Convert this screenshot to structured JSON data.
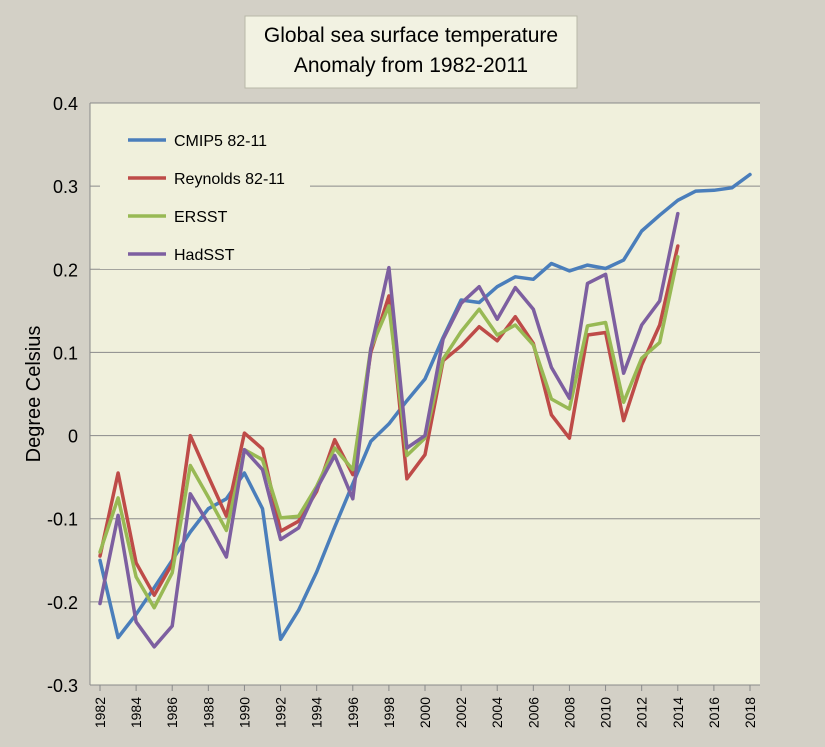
{
  "chart_data": {
    "type": "line",
    "title": "Global sea surface temperature",
    "subtitle": "Anomaly from 1982-2011",
    "xlabel": "",
    "ylabel": "Degree Celsius",
    "xlim": [
      1982,
      2018
    ],
    "ylim": [
      -0.3,
      0.4
    ],
    "yticks": [
      "0.4",
      "0.3",
      "0.2",
      "0.1",
      "0",
      "-0.1",
      "-0.2",
      "-0.3"
    ],
    "xticks": [
      "1982",
      "1984",
      "1986",
      "1988",
      "1990",
      "1992",
      "1994",
      "1996",
      "1998",
      "2000",
      "2002",
      "2004",
      "2006",
      "2008",
      "2010",
      "2012",
      "2014",
      "2016",
      "2018"
    ],
    "grid": "horizontal",
    "legend_position": "top-left",
    "background_color": "#f0f0dc",
    "series": [
      {
        "name": "CMIP5 82-11",
        "color": "#4a7ebb",
        "x": [
          1982,
          1983,
          1984,
          1985,
          1986,
          1987,
          1988,
          1989,
          1990,
          1991,
          1992,
          1993,
          1994,
          1995,
          1996,
          1997,
          1998,
          1999,
          2000,
          2001,
          2002,
          2003,
          2004,
          2005,
          2006,
          2007,
          2008,
          2009,
          2010,
          2011,
          2012,
          2013,
          2014,
          2015,
          2016,
          2017,
          2018
        ],
        "values": [
          -0.15,
          -0.243,
          -0.215,
          -0.183,
          -0.15,
          -0.116,
          -0.088,
          -0.076,
          -0.045,
          -0.088,
          -0.245,
          -0.21,
          -0.164,
          -0.11,
          -0.058,
          -0.007,
          0.014,
          0.042,
          0.068,
          0.118,
          0.163,
          0.16,
          0.179,
          0.191,
          0.188,
          0.207,
          0.198,
          0.205,
          0.201,
          0.211,
          0.246,
          0.265,
          0.283,
          0.294,
          0.295,
          0.298,
          0.314
        ]
      },
      {
        "name": "Reynolds 82-11",
        "color": "#be4b48",
        "x": [
          1982,
          1983,
          1984,
          1985,
          1986,
          1987,
          1988,
          1989,
          1990,
          1991,
          1992,
          1993,
          1994,
          1995,
          1996,
          1997,
          1998,
          1999,
          2000,
          2001,
          2002,
          2003,
          2004,
          2005,
          2006,
          2007,
          2008,
          2009,
          2010,
          2011,
          2012,
          2013,
          2014
        ],
        "values": [
          -0.145,
          -0.045,
          -0.153,
          -0.192,
          -0.154,
          0.0,
          -0.049,
          -0.097,
          0.003,
          -0.016,
          -0.115,
          -0.103,
          -0.067,
          -0.005,
          -0.047,
          0.1,
          0.168,
          -0.052,
          -0.023,
          0.09,
          0.108,
          0.131,
          0.114,
          0.143,
          0.111,
          0.025,
          -0.003,
          0.121,
          0.124,
          0.018,
          0.085,
          0.133,
          0.228
        ]
      },
      {
        "name": "ERSST",
        "color": "#98b954",
        "x": [
          1982,
          1983,
          1984,
          1985,
          1986,
          1987,
          1988,
          1989,
          1990,
          1991,
          1992,
          1993,
          1994,
          1995,
          1996,
          1997,
          1998,
          1999,
          2000,
          2001,
          2002,
          2003,
          2004,
          2005,
          2006,
          2007,
          2008,
          2009,
          2010,
          2011,
          2012,
          2013,
          2014
        ],
        "values": [
          -0.14,
          -0.075,
          -0.17,
          -0.207,
          -0.165,
          -0.036,
          -0.074,
          -0.114,
          -0.017,
          -0.029,
          -0.099,
          -0.097,
          -0.061,
          -0.015,
          -0.041,
          0.105,
          0.156,
          -0.024,
          -0.003,
          0.092,
          0.125,
          0.152,
          0.121,
          0.133,
          0.109,
          0.044,
          0.032,
          0.132,
          0.136,
          0.04,
          0.093,
          0.112,
          0.215
        ]
      },
      {
        "name": "HadSST",
        "color": "#7d5fa0",
        "x": [
          1982,
          1983,
          1984,
          1985,
          1986,
          1987,
          1988,
          1989,
          1990,
          1991,
          1992,
          1993,
          1994,
          1995,
          1996,
          1997,
          1998,
          1999,
          2000,
          2001,
          2002,
          2003,
          2004,
          2005,
          2006,
          2007,
          2008,
          2009,
          2010,
          2011,
          2012,
          2013,
          2014
        ],
        "values": [
          -0.202,
          -0.096,
          -0.224,
          -0.254,
          -0.229,
          -0.07,
          -0.106,
          -0.146,
          -0.017,
          -0.041,
          -0.125,
          -0.111,
          -0.064,
          -0.024,
          -0.076,
          0.104,
          0.202,
          -0.015,
          0.0,
          0.116,
          0.159,
          0.179,
          0.14,
          0.178,
          0.152,
          0.082,
          0.045,
          0.183,
          0.194,
          0.075,
          0.133,
          0.162,
          0.267
        ]
      }
    ]
  }
}
